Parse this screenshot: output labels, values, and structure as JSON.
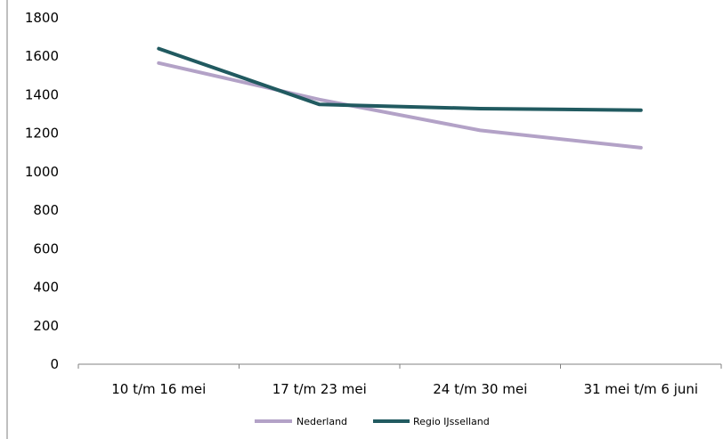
{
  "chart_data": {
    "type": "line",
    "title": "",
    "xlabel": "",
    "ylabel": "",
    "categories": [
      "10 t/m 16 mei",
      "17 t/m 23 mei",
      "24 t/m 30 mei",
      "31 mei t/m 6 juni"
    ],
    "ylim": [
      0,
      1800
    ],
    "yticks": [
      "0",
      "200",
      "400",
      "600",
      "800",
      "1000",
      "1200",
      "1400",
      "1600",
      "1800"
    ],
    "grid": false,
    "legend_position": "bottom",
    "series": [
      {
        "name": "Nederland",
        "color": "#b3a2c7",
        "values": [
          1565,
          1375,
          1215,
          1125
        ]
      },
      {
        "name": "Regio IJsselland",
        "color": "#215a60",
        "values": [
          1640,
          1350,
          1328,
          1320
        ]
      }
    ]
  }
}
